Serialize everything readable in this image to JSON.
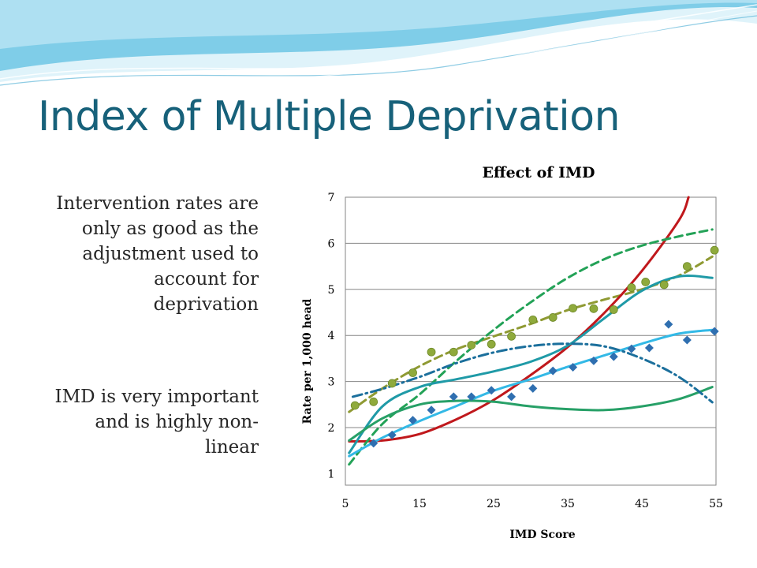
{
  "slide": {
    "title": "Index of Multiple Deprivation",
    "paragraphs": [
      "Intervention rates are only as good as the adjustment used to account for deprivation",
      "IMD is very important and is highly non-linear"
    ]
  },
  "colors": {
    "title": "#17617a",
    "banner_sky": "#7fcde8",
    "banner_light": "#dff3fa",
    "gridline": "#868686",
    "olive_points": "#8faa3c",
    "olive_trend": "#8f9a33",
    "diamond_points": "#2f6fb0",
    "red_curve": "#c0181c",
    "green_dashed": "#23a257",
    "teal_curve": "#1f9aa7",
    "light_blue_curve": "#33b9e6",
    "green_curve": "#27a067",
    "dashdot_curve": "#1b6f9c"
  },
  "chart_data": {
    "type": "scatter",
    "title": "Effect of IMD",
    "xlabel": "IMD Score",
    "ylabel": "Rate per 1,000 head",
    "xlim": [
      5,
      55
    ],
    "ylim": [
      1,
      7
    ],
    "xticks": [
      "5",
      "15",
      "25",
      "35",
      "45",
      "55"
    ],
    "yticks": [
      "1",
      "2",
      "3",
      "4",
      "5",
      "6",
      "7"
    ],
    "grid": "horizontal",
    "legend": "none",
    "series": [
      {
        "kind": "points",
        "marker": "circle",
        "color": "#8faa3c",
        "x": [
          6.3,
          8.8,
          11.3,
          14.1,
          16.6,
          19.6,
          22.0,
          24.7,
          27.4,
          30.3,
          33.0,
          35.7,
          38.5,
          41.2,
          43.6,
          45.5,
          48.0,
          51.1,
          54.8
        ],
        "y": [
          2.48,
          2.56,
          2.96,
          3.19,
          3.64,
          3.64,
          3.79,
          3.81,
          3.98,
          4.34,
          4.39,
          4.59,
          4.58,
          4.56,
          5.04,
          5.16,
          5.1,
          5.5,
          5.85
        ]
      },
      {
        "kind": "points",
        "marker": "diamond",
        "color": "#2f6fb0",
        "x": [
          8.8,
          11.3,
          14.1,
          16.6,
          19.6,
          22.0,
          24.7,
          27.4,
          30.3,
          33.0,
          35.7,
          38.5,
          41.2,
          43.6,
          46.0,
          48.6,
          51.1,
          54.8
        ],
        "y": [
          1.66,
          1.84,
          2.16,
          2.38,
          2.67,
          2.67,
          2.81,
          2.67,
          2.85,
          3.23,
          3.31,
          3.45,
          3.54,
          3.71,
          3.73,
          4.24,
          3.9,
          4.09
        ]
      },
      {
        "kind": "curve",
        "style": "dashed",
        "color": "#8f9a33",
        "x": [
          5.5,
          10,
          15,
          20,
          25,
          30,
          35,
          40,
          45,
          50,
          54.5
        ],
        "y": [
          2.34,
          2.85,
          3.33,
          3.7,
          3.98,
          4.25,
          4.55,
          4.78,
          5.0,
          5.3,
          5.71
        ]
      },
      {
        "kind": "curve",
        "style": "solid",
        "color": "#c0181c",
        "x": [
          5.5,
          10,
          15,
          20,
          25,
          30,
          35,
          40,
          45,
          50,
          51.3
        ],
        "y": [
          1.7,
          1.72,
          1.86,
          2.18,
          2.6,
          3.14,
          3.75,
          4.5,
          5.4,
          6.5,
          7.0
        ]
      },
      {
        "kind": "curve",
        "style": "dashed",
        "color": "#23a257",
        "x": [
          5.5,
          10,
          15,
          20,
          25,
          30,
          35,
          40,
          45,
          50,
          54.5
        ],
        "y": [
          1.2,
          2.08,
          2.72,
          3.45,
          4.12,
          4.72,
          5.25,
          5.66,
          5.95,
          6.15,
          6.3
        ]
      },
      {
        "kind": "curve",
        "style": "solid",
        "color": "#1f9aa7",
        "x": [
          5.5,
          10,
          15,
          20,
          25,
          30,
          35,
          40,
          45,
          50,
          54.5
        ],
        "y": [
          1.45,
          2.46,
          2.88,
          3.05,
          3.22,
          3.43,
          3.78,
          4.38,
          4.97,
          5.28,
          5.25
        ]
      },
      {
        "kind": "curve",
        "style": "solid",
        "color": "#33b9e6",
        "x": [
          5.5,
          10,
          15,
          20,
          25,
          30,
          35,
          40,
          45,
          50,
          54.5
        ],
        "y": [
          1.38,
          1.78,
          2.14,
          2.47,
          2.8,
          3.05,
          3.32,
          3.57,
          3.82,
          4.04,
          4.12
        ]
      },
      {
        "kind": "curve",
        "style": "solid",
        "color": "#27a067",
        "x": [
          5.5,
          10,
          15,
          20,
          25,
          30,
          35,
          40,
          45,
          50,
          54.5
        ],
        "y": [
          1.72,
          2.2,
          2.5,
          2.58,
          2.56,
          2.46,
          2.4,
          2.38,
          2.46,
          2.62,
          2.88
        ]
      },
      {
        "kind": "curve",
        "style": "dashdot",
        "color": "#1b6f9c",
        "x": [
          6,
          10,
          15,
          20,
          25,
          30,
          35,
          40,
          45,
          50,
          54.5
        ],
        "y": [
          2.67,
          2.84,
          3.1,
          3.4,
          3.63,
          3.77,
          3.82,
          3.76,
          3.5,
          3.1,
          2.55
        ]
      }
    ]
  }
}
